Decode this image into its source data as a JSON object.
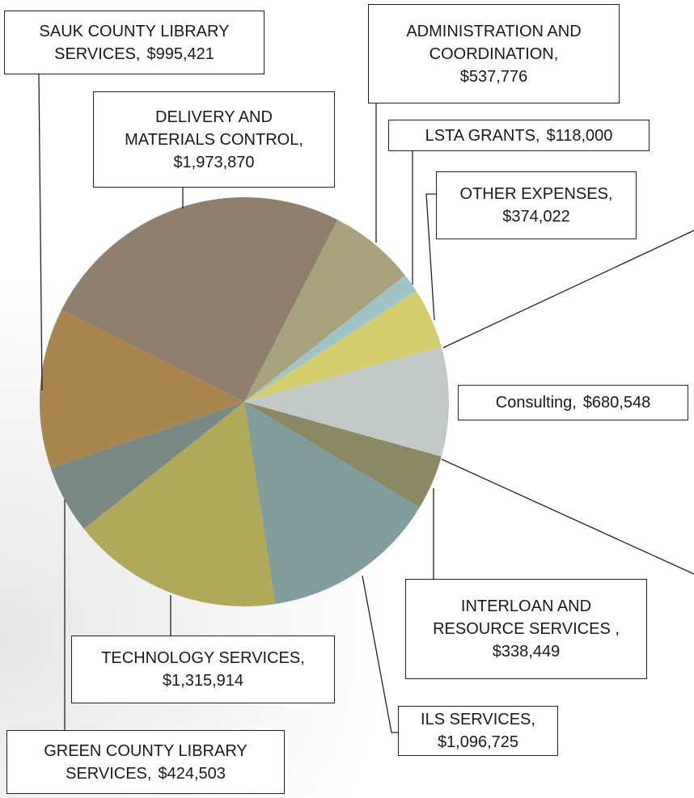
{
  "chart_data": {
    "type": "pie",
    "categories": [
      "DELIVERY AND MATERIALS CONTROL,",
      "ADMINISTRATION AND COORDINATION,",
      "LSTA GRANTS,",
      "OTHER EXPENSES,",
      "Consulting,",
      "INTERLOAN AND RESOURCE SERVICES ,",
      "ILS SERVICES,",
      "TECHNOLOGY SERVICES,",
      "GREEN COUNTY LIBRARY SERVICES,",
      "SAUK COUNTY LIBRARY SERVICES,"
    ],
    "values": [
      1973870,
      537776,
      118000,
      374022,
      680548,
      338449,
      1096725,
      1315914,
      424503,
      995421
    ],
    "value_labels": [
      "$1,973,870",
      "$537,776",
      "$118,000",
      "$374,022",
      "$680,548",
      "$338,449",
      "$1,096,725",
      "$1,315,914",
      "$424,503",
      "$995,421"
    ],
    "colors": [
      "#8f806d",
      "#a8a27c",
      "#9fc4c8",
      "#d4cd6e",
      "#c3c9c6",
      "#8b8864",
      "#809c9b",
      "#b0a95a",
      "#7a8983",
      "#a8864d"
    ]
  }
}
